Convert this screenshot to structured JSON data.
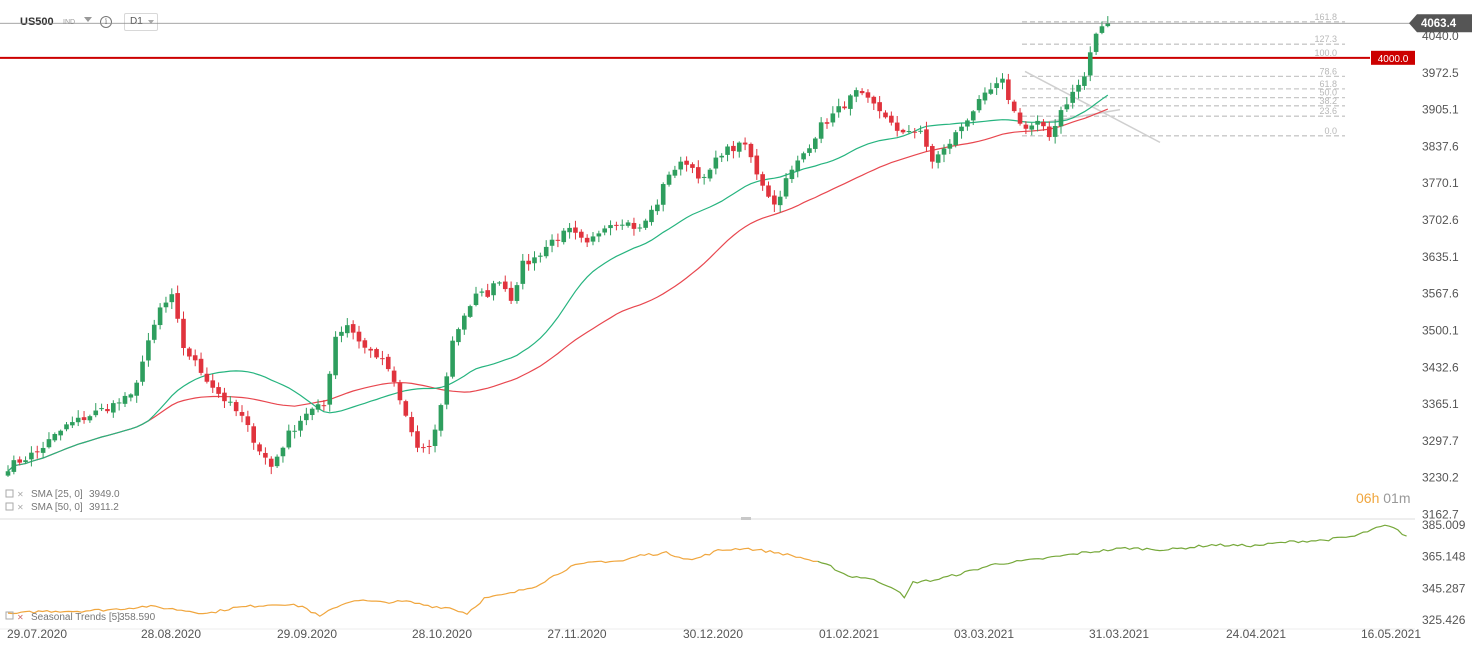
{
  "toolbar": {
    "symbol": "US500",
    "instrument_type": "IND",
    "timeframe": "D1"
  },
  "colors": {
    "bull": "#2e9e5e",
    "bear": "#e0333d",
    "sma25": "#26b47f",
    "sma50": "#e8474f",
    "resistance": "#cc0000",
    "price_tag": "#555555",
    "fib": "#c8c8c8",
    "seasonal_orange": "#f0a63e",
    "seasonal_green": "#76a83a",
    "countdown": "#f0a63e"
  },
  "chart_data": [
    {
      "type": "candlestick",
      "series_name": "US500",
      "timeframe": "D1",
      "y_axis": {
        "ticks": [
          4040.0,
          3972.5,
          3905.1,
          3837.6,
          3770.1,
          3702.6,
          3635.1,
          3567.6,
          3500.1,
          3432.6,
          3365.1,
          3297.7,
          3230.2,
          3162.7
        ],
        "labels": [
          "4040.0",
          "3972.5",
          "3905.1",
          "3837.6",
          "3770.1",
          "3702.6",
          "3635.1",
          "3567.6",
          "3500.1",
          "3432.6",
          "3365.1",
          "3297.7",
          "3230.2",
          "3162.7"
        ],
        "range": [
          3155,
          4088
        ]
      },
      "x_axis": {
        "labels": [
          "29.07.2020",
          "28.08.2020",
          "29.09.2020",
          "28.10.2020",
          "27.11.2020",
          "30.12.2020",
          "01.02.2021",
          "03.03.2021",
          "31.03.2021",
          "24.04.2021",
          "16.05.2021"
        ]
      },
      "anchors": [
        [
          0,
          3250
        ],
        [
          5,
          3278
        ],
        [
          10,
          3325
        ],
        [
          15,
          3350
        ],
        [
          21,
          3378
        ],
        [
          26,
          3540
        ],
        [
          28,
          3560
        ],
        [
          30,
          3470
        ],
        [
          33,
          3425
        ],
        [
          36,
          3385
        ],
        [
          40,
          3340
        ],
        [
          43,
          3282
        ],
        [
          45,
          3250
        ],
        [
          48,
          3310
        ],
        [
          51,
          3350
        ],
        [
          54,
          3362
        ],
        [
          56,
          3490
        ],
        [
          58,
          3512
        ],
        [
          61,
          3468
        ],
        [
          63,
          3455
        ],
        [
          65,
          3430
        ],
        [
          67,
          3370
        ],
        [
          70,
          3285
        ],
        [
          72,
          3280
        ],
        [
          74,
          3360
        ],
        [
          76,
          3480
        ],
        [
          78,
          3530
        ],
        [
          80,
          3563
        ],
        [
          82,
          3568
        ],
        [
          84,
          3595
        ],
        [
          86,
          3560
        ],
        [
          88,
          3620
        ],
        [
          90,
          3632
        ],
        [
          93,
          3665
        ],
        [
          96,
          3682
        ],
        [
          99,
          3655
        ],
        [
          102,
          3695
        ],
        [
          105,
          3702
        ],
        [
          108,
          3685
        ],
        [
          111,
          3735
        ],
        [
          113,
          3790
        ],
        [
          116,
          3810
        ],
        [
          119,
          3775
        ],
        [
          122,
          3828
        ],
        [
          126,
          3840
        ],
        [
          128,
          3790
        ],
        [
          131,
          3730
        ],
        [
          133,
          3775
        ],
        [
          136,
          3825
        ],
        [
          139,
          3875
        ],
        [
          142,
          3905
        ],
        [
          145,
          3935
        ],
        [
          148,
          3912
        ],
        [
          150,
          3895
        ],
        [
          152,
          3860
        ],
        [
          154,
          3870
        ],
        [
          156,
          3860
        ],
        [
          158,
          3812
        ],
        [
          160,
          3830
        ],
        [
          162,
          3860
        ],
        [
          165,
          3905
        ],
        [
          168,
          3940
        ],
        [
          170,
          3955
        ],
        [
          172,
          3900
        ],
        [
          174,
          3870
        ],
        [
          176,
          3880
        ],
        [
          178,
          3855
        ],
        [
          180,
          3905
        ],
        [
          182,
          3935
        ],
        [
          184,
          3965
        ],
        [
          185,
          4010
        ],
        [
          186,
          4040
        ],
        [
          187,
          4060
        ],
        [
          188,
          4063.4
        ]
      ],
      "last_price": 4063.4,
      "last_price_label": "4063.4",
      "horizontal_line": {
        "value": 4000.0,
        "label": "4000.0"
      },
      "indicators": [
        {
          "name": "SMA [25, 0]",
          "value_label": "3949.0",
          "period": 25
        },
        {
          "name": "SMA [50, 0]",
          "value_label": "3911.2",
          "period": 50
        }
      ],
      "fibonacci": {
        "levels": [
          {
            "label": "161.8",
            "value": 4066
          },
          {
            "label": "127.3",
            "value": 4025
          },
          {
            "label": "100.0",
            "value": 4000
          },
          {
            "label": "78.6",
            "value": 3966
          },
          {
            "label": "61.8",
            "value": 3943
          },
          {
            "label": "50.0",
            "value": 3927
          },
          {
            "label": "38.2",
            "value": 3912
          },
          {
            "label": "23.6",
            "value": 3893
          },
          {
            "label": "0.0",
            "value": 3857
          }
        ]
      },
      "countdown": {
        "hours": "06",
        "h_unit": "h",
        "minutes": "01",
        "m_unit": "m"
      }
    },
    {
      "type": "line",
      "series_name": "Seasonal",
      "indicator": "Seasonal  Trends [5]",
      "value_label": "358.590",
      "y_axis": {
        "ticks": [
          385.009,
          365.148,
          345.287,
          325.426
        ],
        "labels": [
          "385.009",
          "365.148",
          "345.287",
          "325.426"
        ],
        "range": [
          323,
          388
        ]
      },
      "split_index": 187,
      "anchors": [
        [
          0,
          329
        ],
        [
          8,
          331
        ],
        [
          16,
          331
        ],
        [
          24,
          332
        ],
        [
          32,
          334
        ],
        [
          36,
          333
        ],
        [
          42,
          331
        ],
        [
          46,
          329.5
        ],
        [
          52,
          333
        ],
        [
          58,
          334.5
        ],
        [
          63,
          335.5
        ],
        [
          68,
          334
        ],
        [
          72,
          327.5
        ],
        [
          76,
          334
        ],
        [
          80,
          338
        ],
        [
          86,
          336.5
        ],
        [
          92,
          337
        ],
        [
          98,
          334
        ],
        [
          102,
          333
        ],
        [
          106,
          329.5
        ],
        [
          110,
          339
        ],
        [
          116,
          342
        ],
        [
          122,
          347
        ],
        [
          130,
          359
        ],
        [
          136,
          362
        ],
        [
          142,
          362.5
        ],
        [
          146,
          366
        ],
        [
          152,
          367.5
        ],
        [
          158,
          363
        ],
        [
          164,
          369
        ],
        [
          170,
          370.5
        ],
        [
          178,
          367.5
        ],
        [
          184,
          364
        ],
        [
          190,
          359
        ],
        [
          194,
          353
        ],
        [
          198,
          352
        ],
        [
          202,
          348.5
        ],
        [
          205,
          345
        ],
        [
          207,
          339
        ],
        [
          209,
          349
        ],
        [
          214,
          350.5
        ],
        [
          220,
          354.5
        ],
        [
          228,
          360.5
        ],
        [
          238,
          363.5
        ],
        [
          248,
          367.5
        ],
        [
          258,
          370.5
        ],
        [
          268,
          369.5
        ],
        [
          278,
          372.5
        ],
        [
          288,
          372
        ],
        [
          296,
          374.5
        ],
        [
          304,
          375.5
        ],
        [
          311,
          378
        ],
        [
          315,
          382
        ],
        [
          318,
          384.5
        ],
        [
          320,
          383
        ],
        [
          323,
          378
        ]
      ]
    }
  ]
}
